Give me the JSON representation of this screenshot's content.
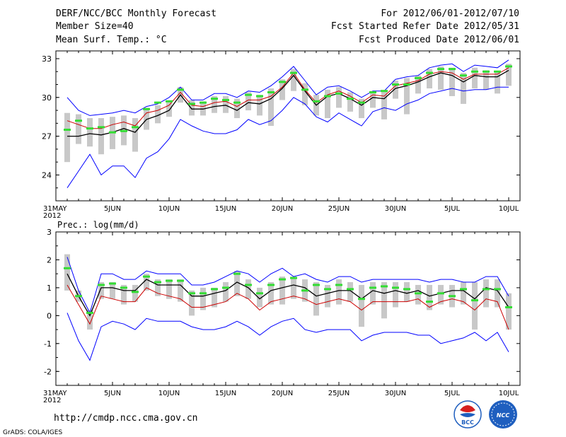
{
  "header": {
    "title": "DERF/NCC/BCC Monthly Forecast",
    "member_size": "Member Size=40",
    "variable": "Mean Surf. Temp.: °C",
    "period": "For 2012/06/01-2012/07/10",
    "started": "Fcst Started Refer Date 2012/05/31",
    "produced": "Fcst Produced Date 2012/06/01"
  },
  "footer": {
    "url": "http://cmdp.ncc.cma.gov.cn",
    "grads": "GrADS: COLA/IGES",
    "logo_bcc": "BCC",
    "logo_ncc": "NCC"
  },
  "colors": {
    "envelope": "#0000ff",
    "mean": "#000000",
    "control": "#cc0000",
    "box": "#c8c8c8",
    "observed": "#33dd33"
  },
  "chart_data": [
    {
      "type": "line",
      "title": "Mean Surf. Temp.: °C",
      "x_tick_labels": [
        "31MAY",
        "5JUN",
        "10JUN",
        "15JUN",
        "20JUN",
        "25JUN",
        "30JUN",
        "5JUL",
        "10JUL"
      ],
      "x_year_label": "2012",
      "x_tick_days": [
        0,
        5,
        10,
        15,
        20,
        25,
        30,
        35,
        40
      ],
      "xlim": [
        0,
        41
      ],
      "ylim": [
        22,
        33.6
      ],
      "y_ticks": [
        24,
        27,
        30,
        33
      ],
      "days": [
        1,
        2,
        3,
        4,
        5,
        6,
        7,
        8,
        9,
        10,
        11,
        12,
        13,
        14,
        15,
        16,
        17,
        18,
        19,
        20,
        21,
        22,
        23,
        24,
        25,
        26,
        27,
        28,
        29,
        30,
        31,
        32,
        33,
        34,
        35,
        36,
        37,
        38,
        39,
        40
      ],
      "series": [
        {
          "name": "ensemble max",
          "values": [
            30.0,
            29.0,
            28.6,
            28.7,
            28.8,
            29.0,
            28.8,
            29.3,
            29.5,
            30.0,
            30.8,
            29.8,
            29.8,
            30.3,
            30.3,
            30.0,
            30.5,
            30.4,
            30.9,
            31.6,
            32.4,
            31.3,
            30.2,
            30.8,
            30.9,
            30.5,
            30.0,
            30.5,
            30.5,
            31.4,
            31.6,
            31.7,
            32.3,
            32.5,
            32.6,
            32.0,
            32.5,
            32.4,
            32.3,
            32.9
          ]
        },
        {
          "name": "ensemble min",
          "values": [
            23.0,
            24.3,
            25.6,
            24.0,
            24.7,
            24.7,
            23.8,
            25.3,
            25.8,
            26.8,
            28.3,
            27.8,
            27.4,
            27.2,
            27.2,
            27.5,
            28.3,
            27.9,
            28.2,
            29.0,
            30.0,
            29.5,
            28.5,
            28.1,
            28.8,
            28.3,
            27.8,
            28.9,
            29.2,
            29.0,
            29.5,
            29.8,
            30.3,
            30.5,
            30.7,
            30.5,
            30.6,
            30.6,
            30.8,
            30.8
          ]
        },
        {
          "name": "ensemble mean",
          "values": [
            27.0,
            27.0,
            27.2,
            27.1,
            27.3,
            27.6,
            27.3,
            28.3,
            28.6,
            29.0,
            30.2,
            29.1,
            29.1,
            29.3,
            29.4,
            29.0,
            29.6,
            29.5,
            29.9,
            30.7,
            31.7,
            30.5,
            29.4,
            30.1,
            30.3,
            29.9,
            29.4,
            30.0,
            29.9,
            30.7,
            30.9,
            31.2,
            31.6,
            31.9,
            31.7,
            31.2,
            31.7,
            31.6,
            31.6,
            32.1
          ]
        },
        {
          "name": "control",
          "values": [
            28.2,
            27.9,
            27.6,
            27.6,
            27.9,
            28.1,
            27.8,
            28.8,
            29.0,
            29.4,
            30.4,
            29.4,
            29.3,
            29.6,
            29.7,
            29.3,
            29.8,
            29.8,
            30.1,
            30.8,
            31.9,
            30.6,
            29.6,
            30.2,
            30.5,
            30.1,
            29.6,
            30.2,
            30.1,
            30.9,
            31.1,
            31.3,
            31.8,
            32.0,
            31.9,
            31.4,
            31.8,
            31.8,
            31.8,
            32.3
          ]
        },
        {
          "name": "observed",
          "values": [
            27.5,
            28.2,
            27.6,
            27.7,
            27.3,
            27.4,
            27.7,
            29.1,
            29.6,
            29.7,
            30.6,
            29.5,
            29.6,
            29.9,
            29.8,
            29.6,
            30.2,
            30.1,
            30.4,
            31.2,
            31.9,
            30.6,
            29.7,
            30.1,
            30.3,
            29.9,
            29.6,
            30.4,
            30.5,
            31.0,
            31.0,
            31.5,
            31.9,
            32.2,
            32.2,
            31.7,
            32.0,
            32.0,
            32.0,
            32.4
          ]
        }
      ],
      "box_low": [
        25.0,
        26.4,
        26.2,
        25.6,
        26.0,
        26.3,
        25.8,
        27.5,
        28.0,
        28.5,
        29.6,
        28.6,
        28.6,
        28.8,
        28.8,
        28.4,
        29.0,
        28.6,
        27.8,
        29.8,
        30.5,
        29.4,
        28.6,
        28.4,
        29.2,
        28.9,
        28.4,
        29.2,
        28.3,
        29.9,
        28.7,
        30.3,
        30.7,
        30.6,
        30.1,
        29.5,
        30.7,
        30.6,
        30.3,
        30.9
      ],
      "box_high": [
        28.8,
        28.7,
        28.4,
        28.4,
        28.5,
        28.6,
        28.4,
        29.2,
        29.4,
        29.7,
        30.8,
        29.8,
        29.7,
        30.1,
        30.1,
        29.9,
        30.4,
        30.2,
        30.7,
        31.4,
        32.2,
        31.1,
        30.2,
        30.6,
        30.8,
        30.4,
        29.9,
        30.5,
        30.5,
        31.3,
        31.5,
        31.7,
        32.2,
        32.4,
        32.3,
        31.9,
        32.3,
        32.1,
        32.0,
        32.6
      ]
    },
    {
      "type": "line",
      "title": "Prec.: log(mm/d)",
      "x_tick_labels": [
        "31MAY",
        "5JUN",
        "10JUN",
        "15JUN",
        "20JUN",
        "25JUN",
        "30JUN",
        "5JUL",
        "10JUL"
      ],
      "x_year_label": "2012",
      "x_tick_days": [
        0,
        5,
        10,
        15,
        20,
        25,
        30,
        35,
        40
      ],
      "xlim": [
        0,
        41
      ],
      "ylim": [
        -2.5,
        3
      ],
      "y_ticks": [
        -2,
        -1,
        0,
        1,
        2,
        3
      ],
      "days": [
        1,
        2,
        3,
        4,
        5,
        6,
        7,
        8,
        9,
        10,
        11,
        12,
        13,
        14,
        15,
        16,
        17,
        18,
        19,
        20,
        21,
        22,
        23,
        24,
        25,
        26,
        27,
        28,
        29,
        30,
        31,
        32,
        33,
        34,
        35,
        36,
        37,
        38,
        39,
        40
      ],
      "series": [
        {
          "name": "ensemble max",
          "values": [
            2.1,
            0.9,
            0.1,
            1.5,
            1.5,
            1.3,
            1.3,
            1.6,
            1.5,
            1.5,
            1.5,
            1.1,
            1.1,
            1.2,
            1.4,
            1.6,
            1.5,
            1.2,
            1.5,
            1.7,
            1.4,
            1.5,
            1.3,
            1.2,
            1.4,
            1.4,
            1.2,
            1.3,
            1.3,
            1.3,
            1.3,
            1.3,
            1.2,
            1.3,
            1.3,
            1.2,
            1.2,
            1.4,
            1.4,
            0.7
          ]
        },
        {
          "name": "ensemble min",
          "values": [
            0.1,
            -0.9,
            -1.6,
            -0.4,
            -0.2,
            -0.3,
            -0.5,
            -0.1,
            -0.2,
            -0.2,
            -0.2,
            -0.4,
            -0.5,
            -0.5,
            -0.4,
            -0.2,
            -0.4,
            -0.7,
            -0.4,
            -0.2,
            -0.1,
            -0.5,
            -0.6,
            -0.5,
            -0.5,
            -0.5,
            -0.9,
            -0.7,
            -0.6,
            -0.6,
            -0.6,
            -0.7,
            -0.7,
            -1.0,
            -0.9,
            -0.8,
            -0.6,
            -0.9,
            -0.6,
            -1.3
          ]
        },
        {
          "name": "ensemble mean",
          "values": [
            1.5,
            0.7,
            0.0,
            1.0,
            1.0,
            0.9,
            0.9,
            1.3,
            1.1,
            1.1,
            1.1,
            0.7,
            0.7,
            0.8,
            0.9,
            1.2,
            1.0,
            0.6,
            0.9,
            1.0,
            1.1,
            1.0,
            0.7,
            0.8,
            0.9,
            0.9,
            0.6,
            0.9,
            0.8,
            0.9,
            0.8,
            0.9,
            0.7,
            0.8,
            0.9,
            0.9,
            0.6,
            1.0,
            0.9,
            0.3
          ]
        },
        {
          "name": "control",
          "values": [
            1.1,
            0.4,
            -0.3,
            0.7,
            0.6,
            0.5,
            0.5,
            1.0,
            0.8,
            0.7,
            0.6,
            0.3,
            0.3,
            0.4,
            0.5,
            0.8,
            0.6,
            0.2,
            0.5,
            0.6,
            0.7,
            0.6,
            0.4,
            0.5,
            0.6,
            0.5,
            0.2,
            0.5,
            0.5,
            0.5,
            0.5,
            0.6,
            0.3,
            0.5,
            0.6,
            0.5,
            0.2,
            0.6,
            0.5,
            -0.5
          ]
        },
        {
          "name": "observed",
          "values": [
            1.7,
            0.7,
            0.1,
            1.1,
            1.15,
            1.0,
            0.85,
            1.4,
            1.2,
            1.25,
            1.25,
            0.8,
            0.8,
            0.95,
            1.0,
            1.5,
            1.1,
            0.8,
            1.1,
            1.3,
            1.35,
            0.9,
            1.1,
            0.95,
            1.1,
            0.95,
            0.6,
            1.0,
            1.05,
            1.0,
            0.95,
            0.8,
            0.5,
            0.8,
            0.7,
            0.95,
            0.55,
            0.95,
            0.95,
            0.3
          ]
        }
      ],
      "box_low": [
        0.9,
        0.5,
        -0.5,
        0.6,
        0.6,
        0.4,
        0.5,
        0.9,
        0.7,
        0.6,
        0.5,
        0.0,
        0.2,
        0.3,
        0.5,
        0.7,
        0.6,
        0.3,
        0.4,
        0.4,
        0.6,
        0.5,
        0.0,
        0.3,
        0.4,
        0.5,
        -0.4,
        0.4,
        -0.1,
        0.3,
        0.5,
        0.4,
        0.2,
        0.4,
        0.3,
        0.4,
        -0.5,
        0.3,
        0.3,
        -0.5
      ],
      "box_high": [
        2.2,
        0.9,
        0.2,
        1.2,
        1.2,
        1.1,
        1.1,
        1.5,
        1.3,
        1.3,
        1.3,
        0.9,
        1.0,
        1.0,
        1.2,
        1.6,
        1.3,
        1.0,
        1.2,
        1.4,
        1.4,
        1.3,
        1.2,
        1.1,
        1.3,
        1.2,
        1.1,
        1.2,
        1.2,
        1.2,
        1.2,
        1.1,
        1.1,
        1.1,
        1.1,
        1.2,
        1.2,
        1.3,
        1.3,
        0.8
      ]
    }
  ]
}
